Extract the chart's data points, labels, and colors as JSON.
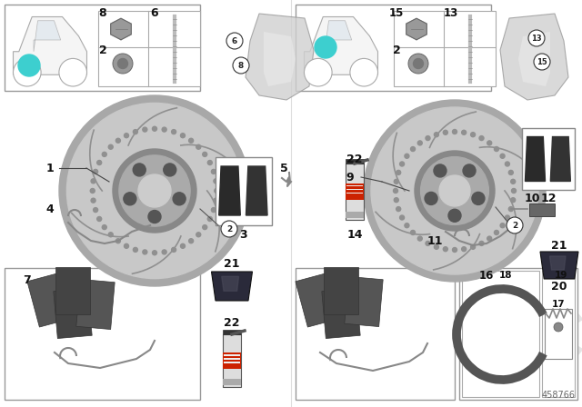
{
  "bg_color": "#ffffff",
  "teal_color": "#3dcfcf",
  "tan_color": "#e8c89a",
  "part_number": "458766",
  "rotor_outer": "#b8b8b8",
  "rotor_face": "#cccccc",
  "rotor_hub": "#909090",
  "rotor_center": "#d8d8d8",
  "pad_dark": "#3a3a3a",
  "pad_med": "#555555",
  "caliper_color": "#d0d0d0",
  "wire_color": "#888888",
  "box_ec": "#888888",
  "label_fs": 8.5,
  "small_fs": 7.0
}
